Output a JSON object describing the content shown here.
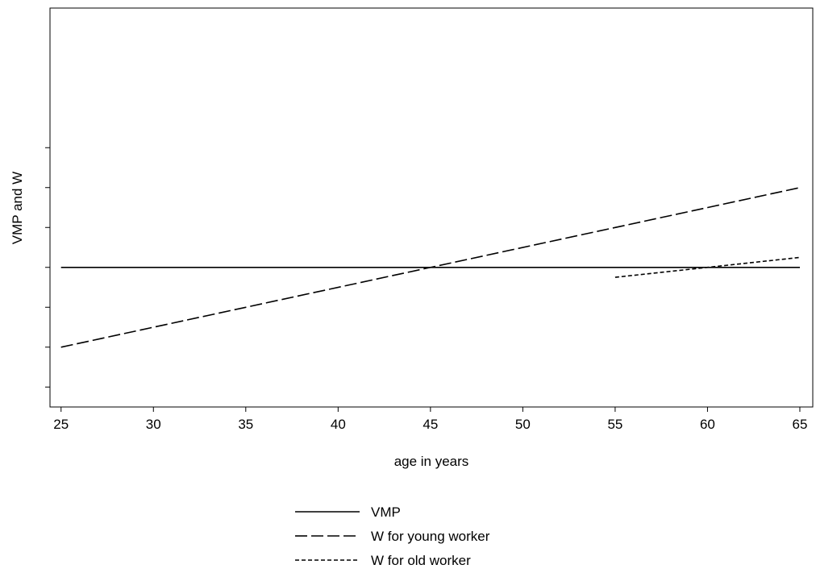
{
  "chart_data": {
    "type": "line",
    "xlabel": "age in years",
    "ylabel": "VMP and W",
    "xlim": [
      24.4,
      65.7
    ],
    "ylim": [
      -0.5,
      9.5
    ],
    "x_ticks": [
      25,
      30,
      35,
      40,
      45,
      50,
      55,
      60,
      65
    ],
    "y_ticks": [
      0,
      1,
      2,
      3,
      4,
      5,
      6
    ],
    "y_tick_labels_shown": false,
    "grid": false,
    "legend_position": "bottom-center",
    "series": [
      {
        "name": "VMP",
        "style": "solid",
        "x": [
          25,
          65
        ],
        "y": [
          3,
          3
        ]
      },
      {
        "name": "W for young worker",
        "style": "long-dash",
        "x": [
          25,
          65
        ],
        "y": [
          1,
          5
        ]
      },
      {
        "name": "W for old worker",
        "style": "short-dash",
        "x": [
          55,
          65
        ],
        "y": [
          2.75,
          3.25
        ]
      }
    ]
  },
  "colors": {
    "line": "#000000",
    "frame": "#000000",
    "background": "#ffffff"
  }
}
